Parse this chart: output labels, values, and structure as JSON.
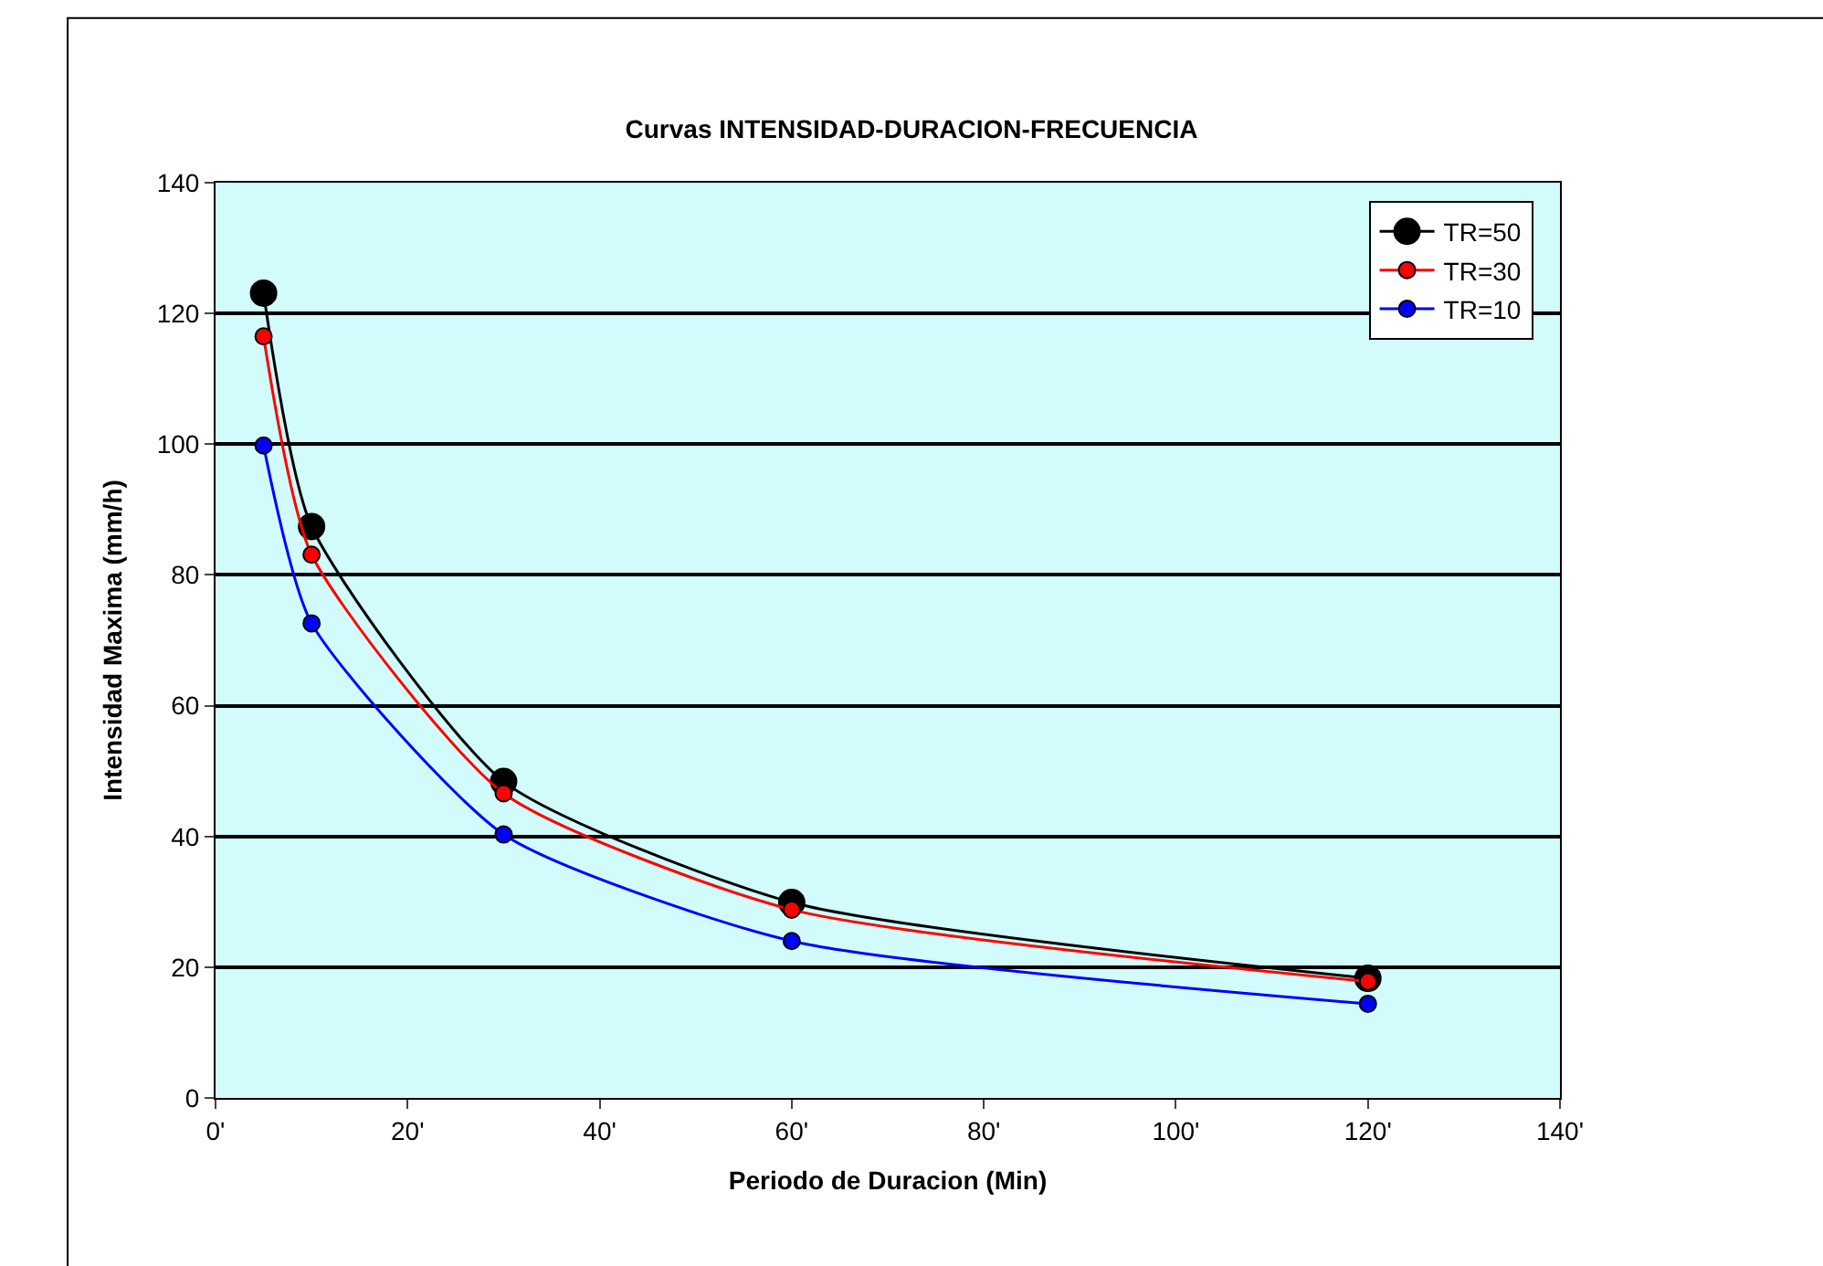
{
  "chart_data": {
    "type": "line",
    "title": "Curvas INTENSIDAD-DURACION-FRECUENCIA",
    "xlabel": "Periodo de Duracion (Min)",
    "ylabel": "Intensidad Maxima (mm/h)",
    "x": [
      5,
      10,
      30,
      60,
      120
    ],
    "series": [
      {
        "name": "TR=50",
        "color": "#000000",
        "values": [
          123.1,
          87.4,
          48.4,
          29.9,
          18.3
        ]
      },
      {
        "name": "TR=30",
        "color": "#ff0000",
        "values": [
          116.5,
          83.1,
          46.6,
          28.8,
          17.8
        ]
      },
      {
        "name": "TR=10",
        "color": "#0000ff",
        "values": [
          99.8,
          72.6,
          40.3,
          24.0,
          14.4
        ]
      }
    ],
    "xlim": [
      0,
      140
    ],
    "xticks": [
      {
        "value": 0,
        "label": "0'"
      },
      {
        "value": 20,
        "label": "20'"
      },
      {
        "value": 40,
        "label": "40'"
      },
      {
        "value": 60,
        "label": "60'"
      },
      {
        "value": 80,
        "label": "80'"
      },
      {
        "value": 100,
        "label": "100'"
      },
      {
        "value": 120,
        "label": "120'"
      },
      {
        "value": 140,
        "label": "140'"
      }
    ],
    "ylim": [
      0,
      140
    ],
    "yticks": [
      0,
      20,
      40,
      60,
      80,
      100,
      120,
      140
    ],
    "grid": "y",
    "legend": "top right",
    "marker": "circle",
    "line_style": "solid"
  }
}
